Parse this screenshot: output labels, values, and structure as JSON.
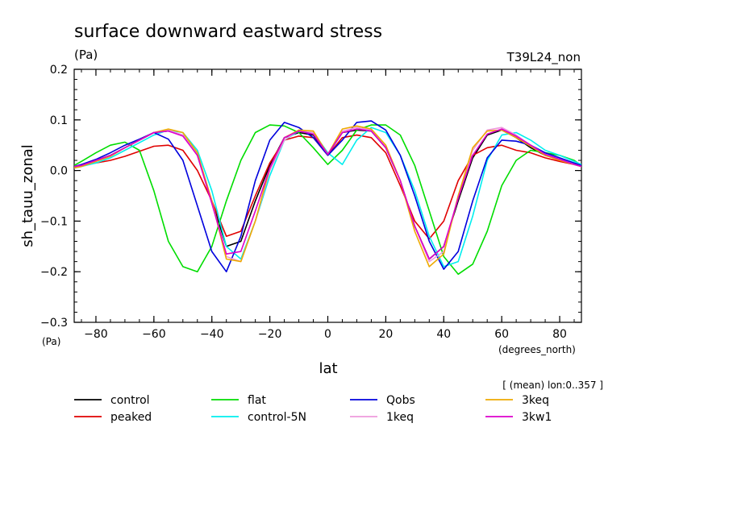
{
  "chart_data": {
    "type": "line",
    "title": "surface downward eastward stress",
    "units_left": "(Pa)",
    "units_axis": "(Pa)",
    "experiment": "T39L24_non",
    "xlabel": "lat",
    "xunits": "(degrees_north)",
    "ylabel": "sh_tauu_zonal",
    "note": "[ (mean) lon:0..357 ]",
    "xlim": [
      -87.5,
      87.5
    ],
    "ylim": [
      -0.3,
      0.2
    ],
    "x_ticks": [
      -80,
      -60,
      -40,
      -20,
      0,
      20,
      40,
      60,
      80
    ],
    "y_ticks": [
      -0.3,
      -0.2,
      -0.1,
      0.0,
      0.1,
      0.2
    ],
    "y_tick_labels": [
      "−0.3",
      "−0.2",
      "−0.1",
      "0.0",
      "0.1",
      "0.2"
    ],
    "x_tick_labels": [
      "−80",
      "−60",
      "−40",
      "−20",
      "0",
      "20",
      "40",
      "60",
      "80"
    ],
    "grid": false,
    "legend_placement": "bottom",
    "x": [
      -87.5,
      -85,
      -80,
      -75,
      -70,
      -65,
      -60,
      -55,
      -50,
      -45,
      -40,
      -35,
      -30,
      -25,
      -20,
      -15,
      -10,
      -5,
      0,
      5,
      10,
      15,
      20,
      25,
      30,
      35,
      40,
      45,
      50,
      55,
      60,
      65,
      70,
      75,
      80,
      85,
      87.5
    ],
    "series": [
      {
        "name": "control",
        "color": "#000000",
        "values": [
          0.008,
          0.01,
          0.02,
          0.03,
          0.045,
          0.06,
          0.075,
          0.078,
          0.07,
          0.03,
          -0.06,
          -0.15,
          -0.14,
          -0.06,
          0.01,
          0.065,
          0.075,
          0.07,
          0.032,
          0.075,
          0.08,
          0.078,
          0.045,
          -0.02,
          -0.11,
          -0.175,
          -0.15,
          -0.06,
          0.025,
          0.07,
          0.08,
          0.065,
          0.045,
          0.03,
          0.022,
          0.012,
          0.008
        ]
      },
      {
        "name": "peaked",
        "color": "#e00000",
        "values": [
          0.008,
          0.01,
          0.015,
          0.02,
          0.028,
          0.038,
          0.048,
          0.05,
          0.04,
          0.0,
          -0.06,
          -0.13,
          -0.12,
          -0.05,
          0.015,
          0.06,
          0.068,
          0.065,
          0.03,
          0.065,
          0.07,
          0.065,
          0.035,
          -0.03,
          -0.1,
          -0.135,
          -0.1,
          -0.02,
          0.03,
          0.045,
          0.05,
          0.04,
          0.035,
          0.025,
          0.018,
          0.012,
          0.01
        ]
      },
      {
        "name": "flat",
        "color": "#00dd00",
        "values": [
          0.01,
          0.018,
          0.035,
          0.05,
          0.056,
          0.04,
          -0.04,
          -0.14,
          -0.19,
          -0.2,
          -0.15,
          -0.06,
          0.02,
          0.075,
          0.09,
          0.088,
          0.075,
          0.045,
          0.012,
          0.04,
          0.08,
          0.09,
          0.09,
          0.07,
          0.01,
          -0.08,
          -0.17,
          -0.205,
          -0.185,
          -0.12,
          -0.03,
          0.02,
          0.04,
          0.035,
          0.03,
          0.02,
          0.01
        ]
      },
      {
        "name": "control-5N",
        "color": "#00eeee",
        "values": [
          0.005,
          0.008,
          0.015,
          0.025,
          0.04,
          0.055,
          0.07,
          0.08,
          0.075,
          0.04,
          -0.04,
          -0.15,
          -0.175,
          -0.1,
          -0.01,
          0.06,
          0.078,
          0.075,
          0.035,
          0.012,
          0.06,
          0.085,
          0.075,
          0.03,
          -0.04,
          -0.13,
          -0.19,
          -0.18,
          -0.09,
          0.02,
          0.07,
          0.075,
          0.06,
          0.04,
          0.03,
          0.018,
          0.012
        ]
      },
      {
        "name": "Qobs",
        "color": "#0000dd",
        "values": [
          0.008,
          0.012,
          0.022,
          0.035,
          0.05,
          0.062,
          0.075,
          0.062,
          0.02,
          -0.07,
          -0.16,
          -0.2,
          -0.13,
          -0.02,
          0.06,
          0.095,
          0.085,
          0.065,
          0.03,
          0.06,
          0.095,
          0.098,
          0.08,
          0.03,
          -0.05,
          -0.14,
          -0.195,
          -0.16,
          -0.06,
          0.025,
          0.06,
          0.058,
          0.05,
          0.035,
          0.025,
          0.015,
          0.01
        ]
      },
      {
        "name": "1keq",
        "color": "#ee99dd",
        "values": [
          0.005,
          0.008,
          0.018,
          0.028,
          0.045,
          0.06,
          0.075,
          0.08,
          0.07,
          0.03,
          -0.06,
          -0.17,
          -0.18,
          -0.1,
          0.0,
          0.06,
          0.08,
          0.075,
          0.032,
          0.078,
          0.085,
          0.08,
          0.048,
          -0.02,
          -0.11,
          -0.18,
          -0.16,
          -0.05,
          0.04,
          0.08,
          0.085,
          0.07,
          0.05,
          0.032,
          0.022,
          0.012,
          0.008
        ]
      },
      {
        "name": "3keq",
        "color": "#eeaa00",
        "values": [
          0.005,
          0.008,
          0.018,
          0.028,
          0.045,
          0.06,
          0.075,
          0.082,
          0.075,
          0.035,
          -0.06,
          -0.175,
          -0.18,
          -0.1,
          0.005,
          0.065,
          0.08,
          0.078,
          0.032,
          0.082,
          0.088,
          0.082,
          0.05,
          -0.02,
          -0.12,
          -0.19,
          -0.165,
          -0.05,
          0.045,
          0.078,
          0.08,
          0.065,
          0.048,
          0.03,
          0.02,
          0.012,
          0.008
        ]
      },
      {
        "name": "3kw1",
        "color": "#dd00cc",
        "values": [
          0.008,
          0.01,
          0.02,
          0.03,
          0.045,
          0.06,
          0.075,
          0.078,
          0.068,
          0.03,
          -0.065,
          -0.165,
          -0.16,
          -0.08,
          0.005,
          0.065,
          0.078,
          0.072,
          0.032,
          0.075,
          0.082,
          0.078,
          0.045,
          -0.02,
          -0.11,
          -0.175,
          -0.15,
          -0.055,
          0.03,
          0.072,
          0.082,
          0.068,
          0.05,
          0.032,
          0.022,
          0.012,
          0.008
        ]
      }
    ]
  }
}
